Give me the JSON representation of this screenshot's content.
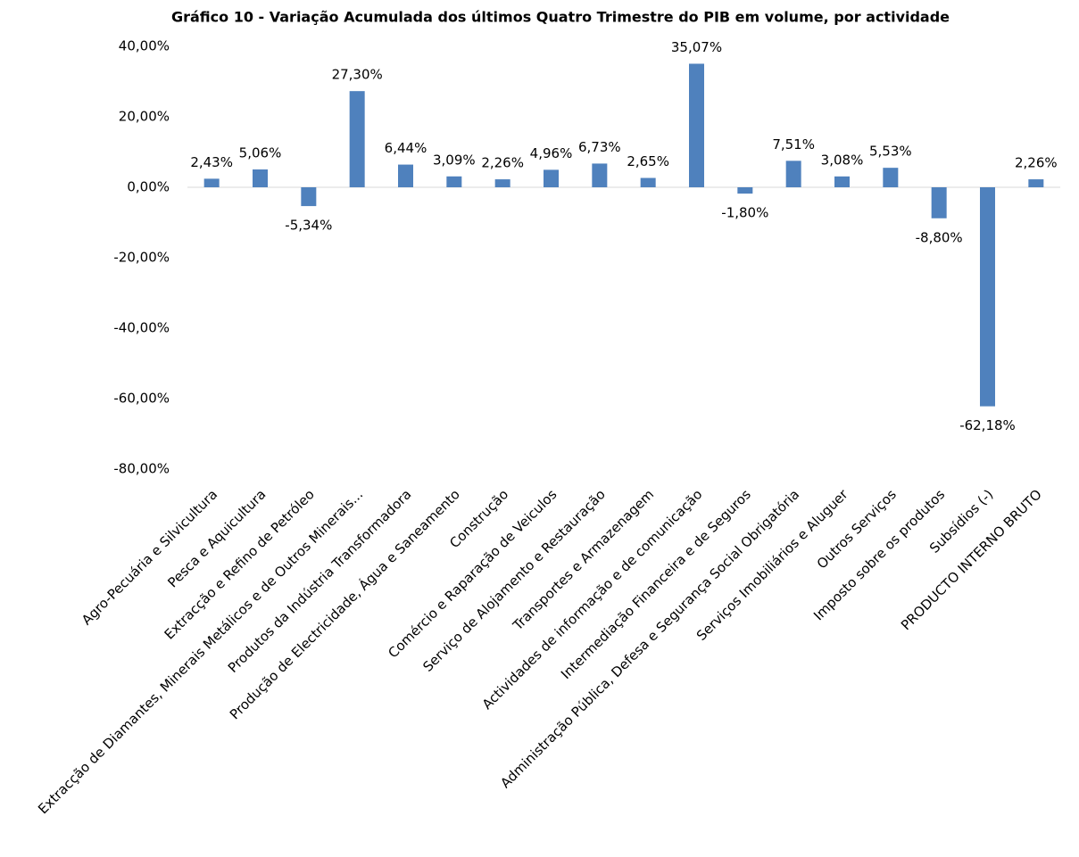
{
  "chart_data": {
    "type": "bar",
    "title": "Gráfico 10 - Variação Acumulada dos últimos Quatro Trimestre do PIB em volume, por actividade",
    "categories": [
      "Agro-Pecuária e Silvicultura",
      "Pesca e Aquicultura",
      "Extracção e Refino de Petróleo",
      "Extracção de Diamantes, Minerais Metálicos e de Outros Minerais...",
      "Produtos da Indústria Transformadora",
      "Produção de Electricidade, Água e Saneamento",
      "Construção",
      "Comércio e Raparação de Veiculos",
      "Serviço de Alojamento e Restauração",
      "Transportes e Armazenagem",
      "Actividades de informação e de comunicação",
      "Intermediação Financeira e de Seguros",
      "Administração Pública, Defesa e Segurança Social Obrigatória",
      "Serviços Imobiliários e Aluguer",
      "Outros Serviços",
      "Imposto sobre os produtos",
      "Subsídios (-)",
      "PRODUCTO INTERNO BRUTO"
    ],
    "values": [
      2.43,
      5.06,
      -5.34,
      27.3,
      6.44,
      3.09,
      2.26,
      4.96,
      6.73,
      2.65,
      35.07,
      -1.8,
      7.51,
      3.08,
      5.53,
      -8.8,
      -62.18,
      2.26
    ],
    "value_labels": [
      "2,43%",
      "5,06%",
      "-5,34%",
      "27,30%",
      "6,44%",
      "3,09%",
      "2,26%",
      "4,96%",
      "6,73%",
      "2,65%",
      "35,07%",
      "-1,80%",
      "7,51%",
      "3,08%",
      "5,53%",
      "-8,80%",
      "-62,18%",
      "2,26%"
    ],
    "color": "#4f81bd",
    "ylim": [
      -80,
      40
    ],
    "yticks": [
      {
        "value": -80,
        "label": "-80,00%"
      },
      {
        "value": -60,
        "label": "-60,00%"
      },
      {
        "value": -40,
        "label": "-40,00%"
      },
      {
        "value": -20,
        "label": "-20,00%"
      },
      {
        "value": 0,
        "label": "0,00%"
      },
      {
        "value": 20,
        "label": "20,00%"
      },
      {
        "value": 40,
        "label": "40,00%"
      }
    ],
    "grid": false
  }
}
